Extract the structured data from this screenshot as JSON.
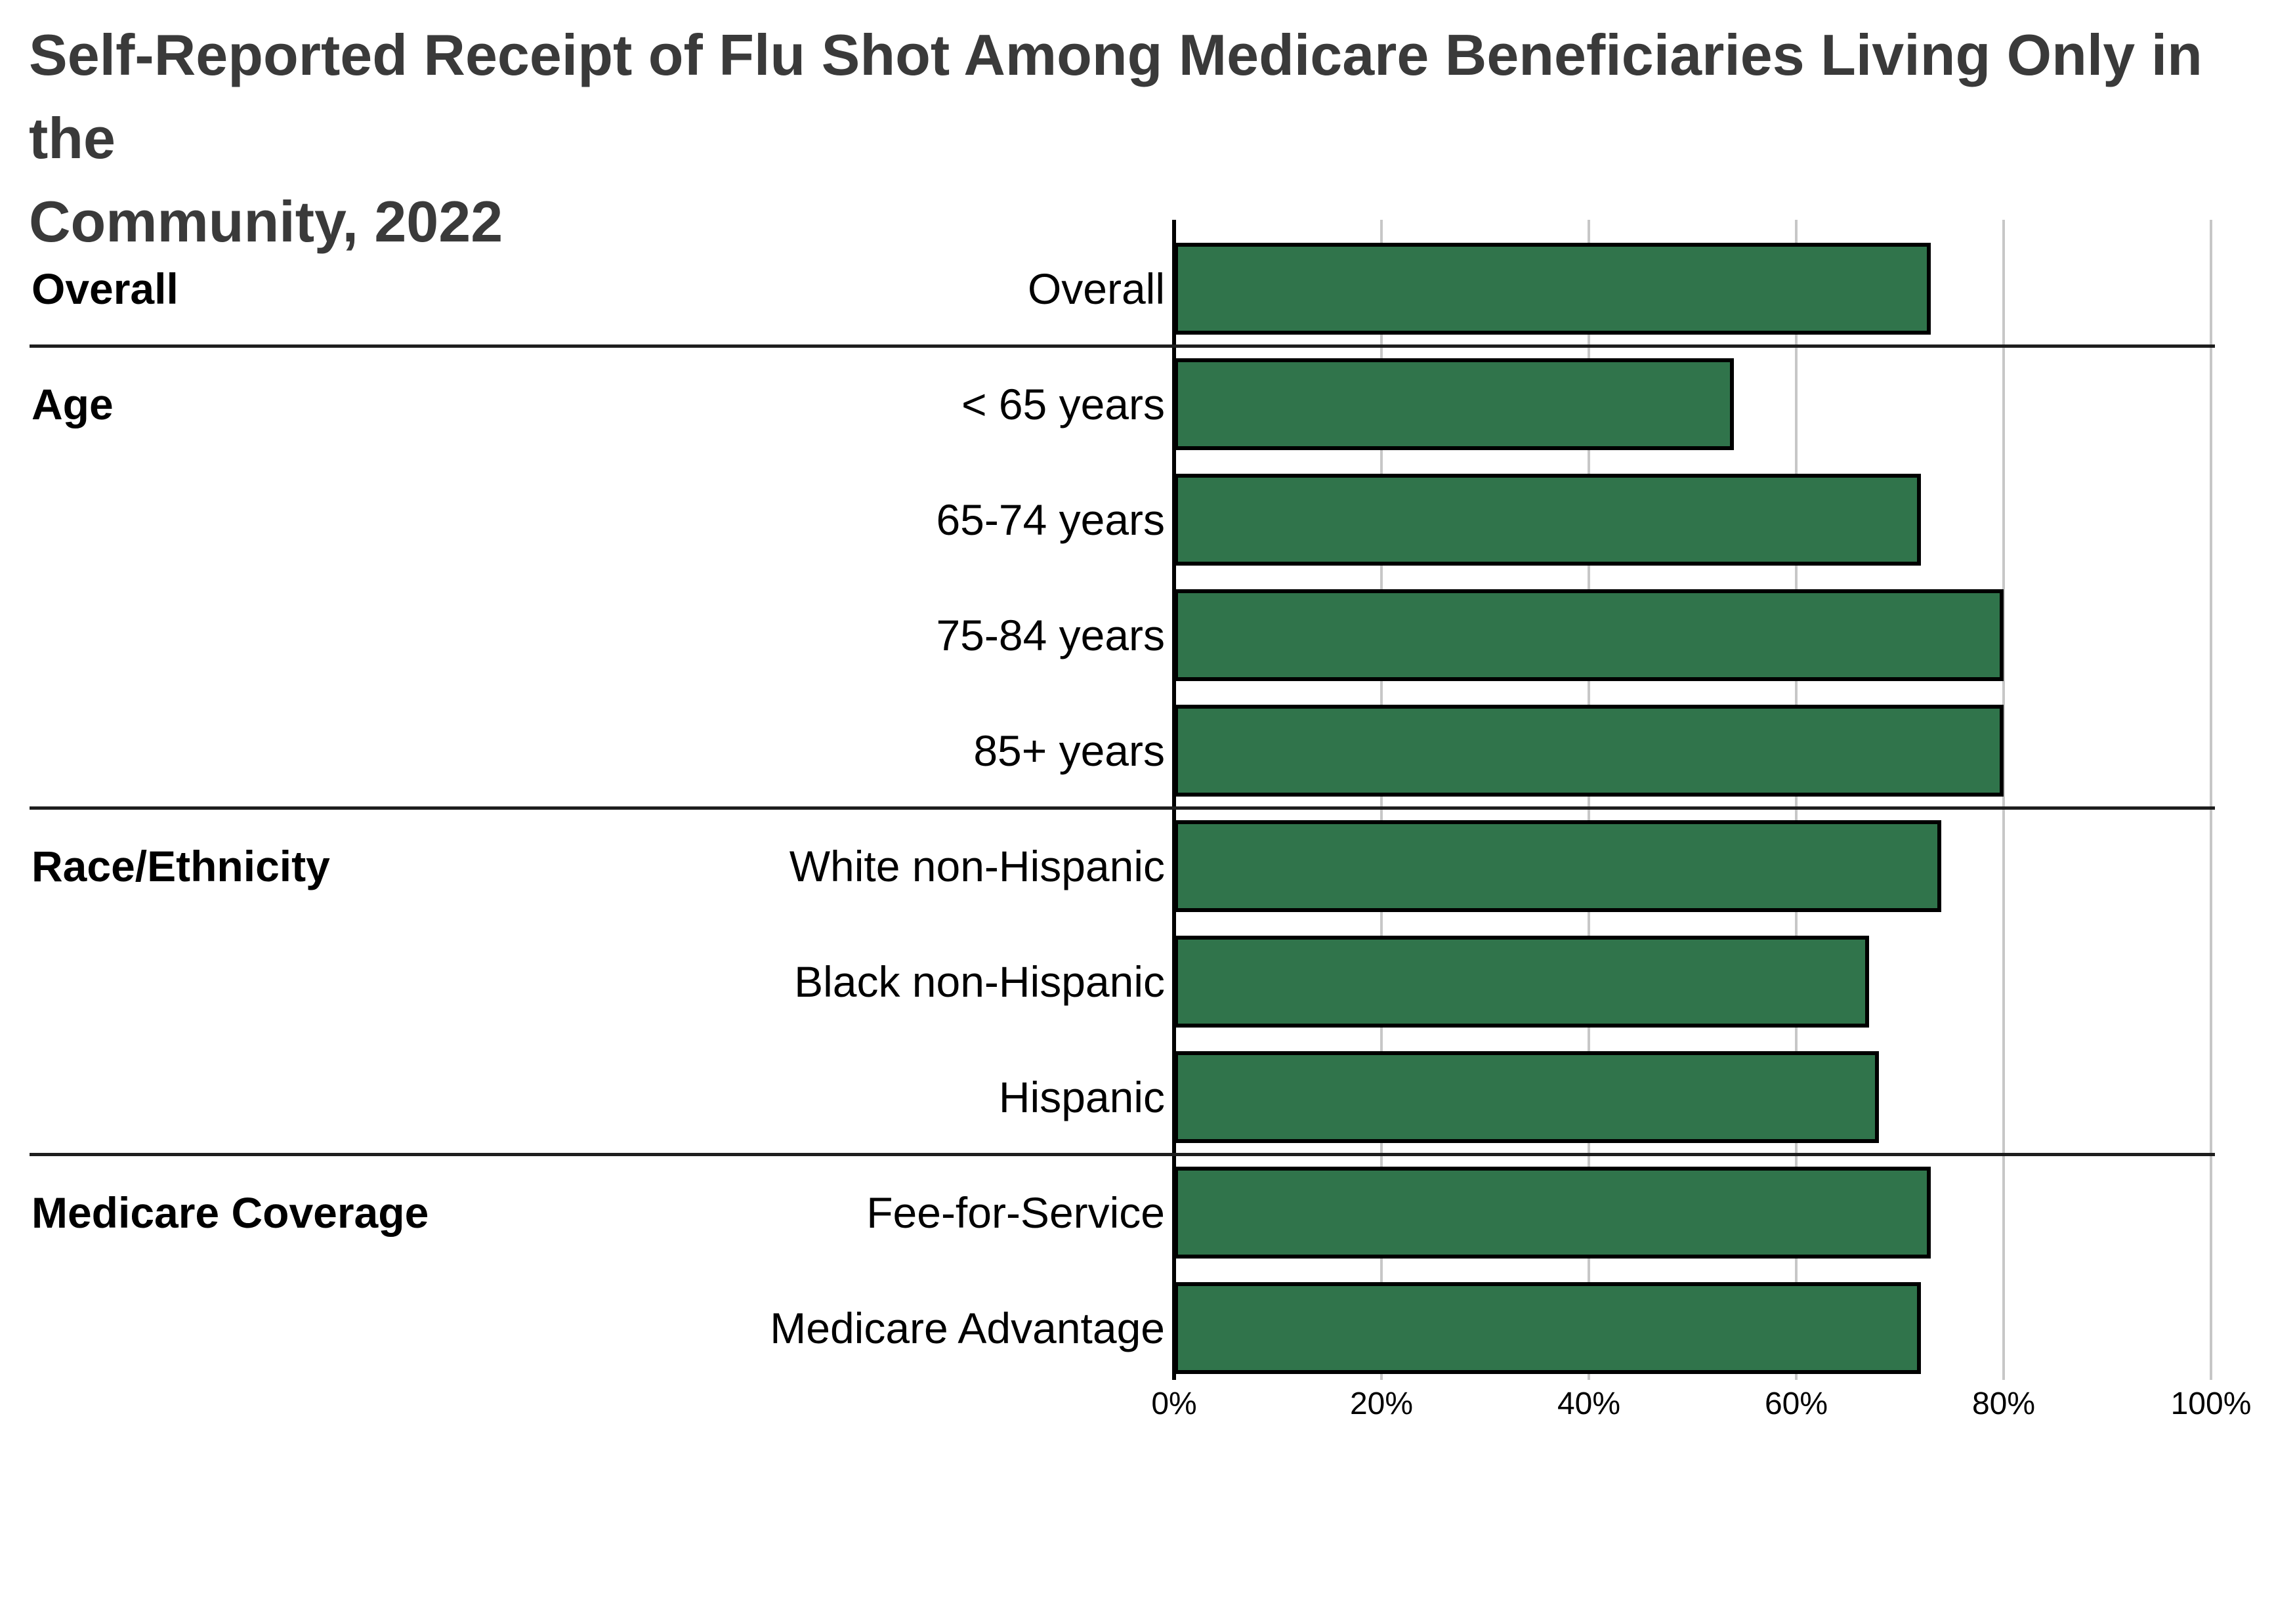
{
  "chart_data": {
    "type": "bar",
    "orientation": "horizontal",
    "title": "Self-Reported Receipt of Flu Shot Among Medicare Beneficiaries Living Only in the Community, 2022",
    "title_lines": [
      "Self-Reported Receipt of Flu Shot Among Medicare Beneficiaries Living Only in the",
      "Community, 2022"
    ],
    "xlabel": "",
    "ylabel": "",
    "xlim": [
      0,
      100
    ],
    "grid": true,
    "legend": "none",
    "x_axis": {
      "tick_values": [
        0,
        20,
        40,
        60,
        80,
        100
      ],
      "tick_labels": [
        "0%",
        "20%",
        "40%",
        "60%",
        "80%",
        "100%"
      ]
    },
    "categories": [
      "Overall",
      "< 65 years",
      "65-74 years",
      "75-84 years",
      "85+ years",
      "White non-Hispanic",
      "Black non-Hispanic",
      "Hispanic",
      "Fee-for-Service",
      "Medicare Advantage"
    ],
    "values": [
      73,
      54,
      72,
      80,
      80,
      74,
      67,
      68,
      73,
      72
    ],
    "groups": [
      {
        "label": "Overall",
        "rows": [
          {
            "label": "Overall",
            "value": 73
          }
        ]
      },
      {
        "label": "Age",
        "rows": [
          {
            "label": "< 65 years",
            "value": 54
          },
          {
            "label": "65-74 years",
            "value": 72
          },
          {
            "label": "75-84 years",
            "value": 80
          },
          {
            "label": "85+ years",
            "value": 80
          }
        ]
      },
      {
        "label": "Race/Ethnicity",
        "rows": [
          {
            "label": "White non-Hispanic",
            "value": 74
          },
          {
            "label": "Black non-Hispanic",
            "value": 67
          },
          {
            "label": "Hispanic",
            "value": 68
          }
        ]
      },
      {
        "label": "Medicare Coverage",
        "rows": [
          {
            "label": "Fee-for-Service",
            "value": 73
          },
          {
            "label": "Medicare Advantage",
            "value": 72
          }
        ]
      }
    ],
    "colors": {
      "bar_fill": "#30744B",
      "bar_border": "#000000",
      "gridline": "#C7C7C7",
      "axis_line": "#000000",
      "separator_line": "#1E1E1E",
      "title_text": "#3A3A3A",
      "label_text": "#000000",
      "background": "#FFFFFF"
    }
  }
}
